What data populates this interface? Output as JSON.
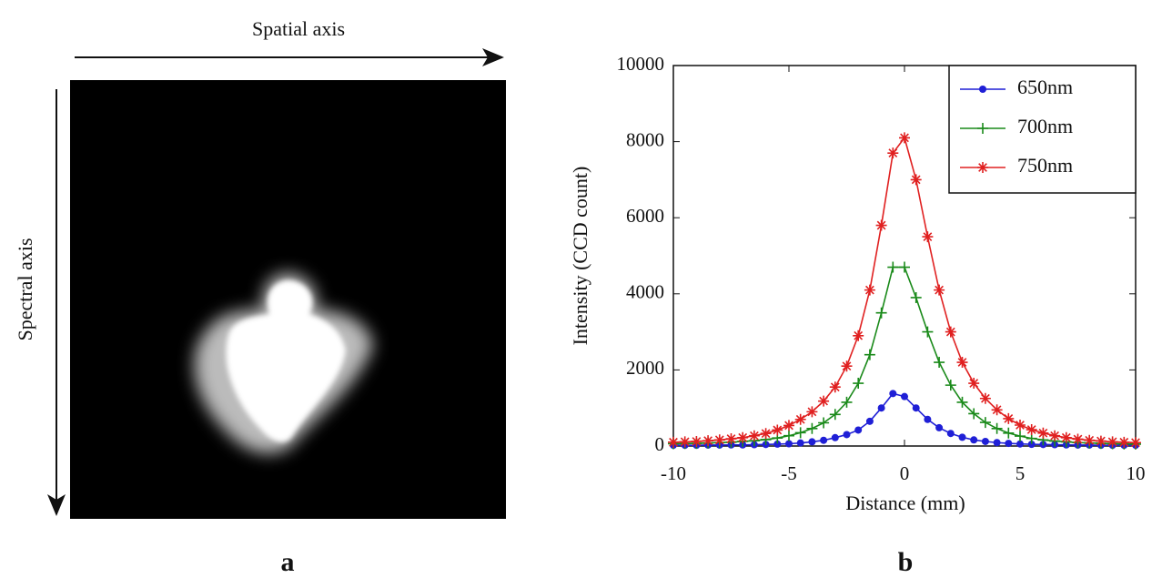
{
  "panel_a": {
    "x_axis_label": "Spatial axis",
    "y_axis_label": "Spectral axis",
    "panel_label": "a"
  },
  "chart_data": {
    "type": "line",
    "panel_label": "b",
    "x_label": "Distance (mm)",
    "y_label": "Intensity (CCD count)",
    "x": [
      -10,
      -9.5,
      -9,
      -8.5,
      -8,
      -7.5,
      -7,
      -6.5,
      -6,
      -5.5,
      -5,
      -4.5,
      -4,
      -3.5,
      -3,
      -2.5,
      -2,
      -1.5,
      -1,
      -0.5,
      0,
      0.5,
      1,
      1.5,
      2,
      2.5,
      3,
      3.5,
      4,
      4.5,
      5,
      5.5,
      6,
      6.5,
      7,
      7.5,
      8,
      8.5,
      9,
      9.5,
      10
    ],
    "series": [
      {
        "name": "650nm",
        "color": "#1f1fd6",
        "marker": "dot",
        "values": [
          20,
          20,
          20,
          25,
          25,
          30,
          30,
          35,
          40,
          50,
          60,
          80,
          110,
          150,
          220,
          300,
          420,
          650,
          1000,
          1380,
          1300,
          1000,
          700,
          480,
          330,
          230,
          160,
          120,
          90,
          70,
          55,
          45,
          40,
          35,
          30,
          25,
          25,
          20,
          20,
          20,
          20
        ]
      },
      {
        "name": "700nm",
        "color": "#1a8a1a",
        "marker": "plus",
        "values": [
          60,
          65,
          70,
          80,
          90,
          100,
          120,
          140,
          170,
          210,
          270,
          350,
          460,
          610,
          830,
          1150,
          1650,
          2400,
          3500,
          4700,
          4700,
          3900,
          3000,
          2200,
          1600,
          1150,
          850,
          620,
          460,
          340,
          260,
          200,
          160,
          130,
          110,
          90,
          80,
          70,
          60,
          55,
          50
        ]
      },
      {
        "name": "750nm",
        "color": "#e02020",
        "marker": "star",
        "values": [
          100,
          110,
          120,
          140,
          160,
          190,
          220,
          270,
          330,
          420,
          540,
          700,
          900,
          1180,
          1550,
          2100,
          2900,
          4100,
          5800,
          7700,
          8100,
          7000,
          5500,
          4100,
          3000,
          2200,
          1650,
          1250,
          950,
          720,
          550,
          430,
          340,
          270,
          220,
          180,
          150,
          130,
          110,
          100,
          90
        ]
      }
    ],
    "xlim": [
      -10,
      10
    ],
    "xticks": [
      -10,
      -5,
      0,
      5,
      10
    ],
    "ylim": [
      0,
      10000
    ],
    "yticks": [
      0,
      2000,
      4000,
      6000,
      8000,
      10000
    ],
    "legend": "upper right",
    "grid": false
  }
}
